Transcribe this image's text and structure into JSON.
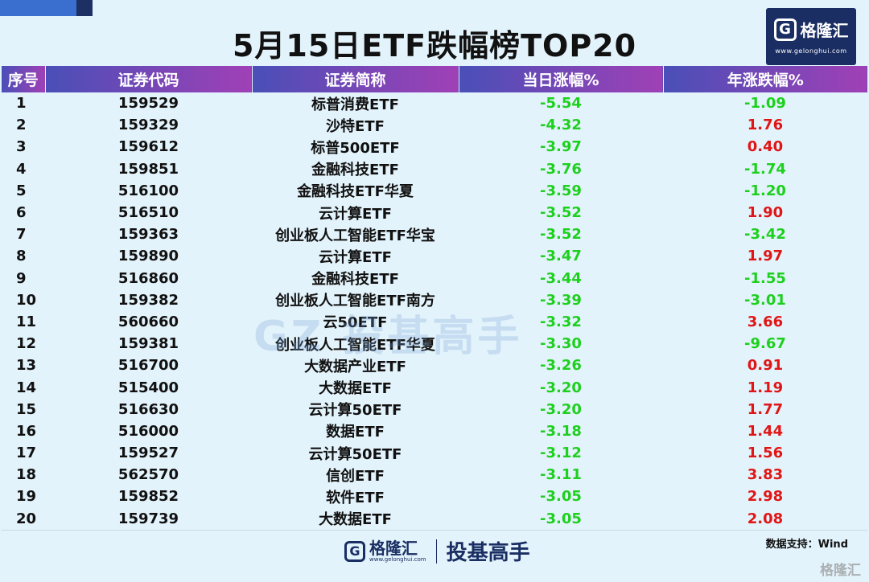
{
  "title": "5月15日ETF跌幅榜TOP20",
  "logo": {
    "mark": "G",
    "name": "格隆汇",
    "url": "www.gelonghui.com"
  },
  "columns": [
    "序号",
    "证券代码",
    "证券简称",
    "当日涨幅%",
    "年涨跌幅%"
  ],
  "rows": [
    {
      "rank": "1",
      "code": "159529",
      "name": "标普消费ETF",
      "day": "-5.54",
      "year": "-1.09"
    },
    {
      "rank": "2",
      "code": "159329",
      "name": "沙特ETF",
      "day": "-4.32",
      "year": "1.76"
    },
    {
      "rank": "3",
      "code": "159612",
      "name": "标普500ETF",
      "day": "-3.97",
      "year": "0.40"
    },
    {
      "rank": "4",
      "code": "159851",
      "name": "金融科技ETF",
      "day": "-3.76",
      "year": "-1.74"
    },
    {
      "rank": "5",
      "code": "516100",
      "name": "金融科技ETF华夏",
      "day": "-3.59",
      "year": "-1.20"
    },
    {
      "rank": "6",
      "code": "516510",
      "name": "云计算ETF",
      "day": "-3.52",
      "year": "1.90"
    },
    {
      "rank": "7",
      "code": "159363",
      "name": "创业板人工智能ETF华宝",
      "day": "-3.52",
      "year": "-3.42"
    },
    {
      "rank": "8",
      "code": "159890",
      "name": "云计算ETF",
      "day": "-3.47",
      "year": "1.97"
    },
    {
      "rank": "9",
      "code": "516860",
      "name": "金融科技ETF",
      "day": "-3.44",
      "year": "-1.55"
    },
    {
      "rank": "10",
      "code": "159382",
      "name": "创业板人工智能ETF南方",
      "day": "-3.39",
      "year": "-3.01"
    },
    {
      "rank": "11",
      "code": "560660",
      "name": "云50ETF",
      "day": "-3.32",
      "year": "3.66"
    },
    {
      "rank": "12",
      "code": "159381",
      "name": "创业板人工智能ETF华夏",
      "day": "-3.30",
      "year": "-9.67"
    },
    {
      "rank": "13",
      "code": "516700",
      "name": "大数据产业ETF",
      "day": "-3.26",
      "year": "0.91"
    },
    {
      "rank": "14",
      "code": "515400",
      "name": "大数据ETF",
      "day": "-3.20",
      "year": "1.19"
    },
    {
      "rank": "15",
      "code": "516630",
      "name": "云计算50ETF",
      "day": "-3.20",
      "year": "1.77"
    },
    {
      "rank": "16",
      "code": "516000",
      "name": "数据ETF",
      "day": "-3.18",
      "year": "1.44"
    },
    {
      "rank": "17",
      "code": "159527",
      "name": "云计算50ETF",
      "day": "-3.12",
      "year": "1.56"
    },
    {
      "rank": "18",
      "code": "562570",
      "name": "信创ETF",
      "day": "-3.11",
      "year": "3.83"
    },
    {
      "rank": "19",
      "code": "159852",
      "name": "软件ETF",
      "day": "-3.05",
      "year": "2.98"
    },
    {
      "rank": "20",
      "code": "159739",
      "name": "大数据ETF",
      "day": "-3.05",
      "year": "2.08"
    }
  ],
  "watermark": "GZ  投基高手",
  "source": "数据支持：Wind",
  "footer": {
    "mark": "G",
    "name": "格隆汇",
    "url": "www.gelonghui.com",
    "slogan": "投基高手"
  },
  "corner_watermark": "格隆汇",
  "colors": {
    "negative": "#1ed01e",
    "positive": "#e01616",
    "header_from": "#4a4fb7",
    "header_to": "#a040b6",
    "brand": "#1a2e63"
  }
}
